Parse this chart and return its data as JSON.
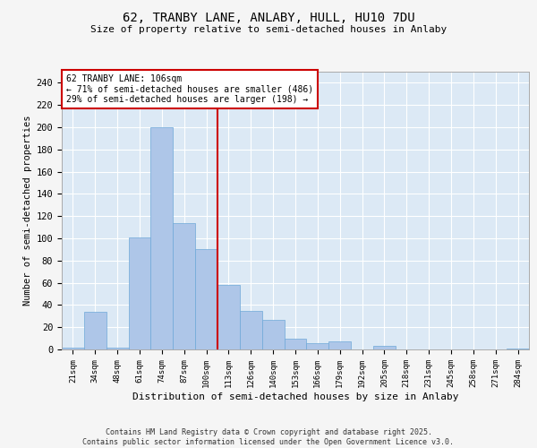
{
  "title_line1": "62, TRANBY LANE, ANLABY, HULL, HU10 7DU",
  "title_line2": "Size of property relative to semi-detached houses in Anlaby",
  "xlabel": "Distribution of semi-detached houses by size in Anlaby",
  "ylabel": "Number of semi-detached properties",
  "categories": [
    "21sqm",
    "34sqm",
    "48sqm",
    "61sqm",
    "74sqm",
    "87sqm",
    "100sqm",
    "113sqm",
    "126sqm",
    "140sqm",
    "153sqm",
    "166sqm",
    "179sqm",
    "192sqm",
    "205sqm",
    "218sqm",
    "231sqm",
    "245sqm",
    "258sqm",
    "271sqm",
    "284sqm"
  ],
  "values": [
    2,
    34,
    2,
    101,
    200,
    114,
    90,
    58,
    35,
    27,
    10,
    6,
    7,
    0,
    3,
    0,
    0,
    0,
    0,
    0,
    1
  ],
  "bar_color": "#aec6e8",
  "bar_edge_color": "#6ea8d8",
  "vline_color": "#cc0000",
  "annotation_title": "62 TRANBY LANE: 106sqm",
  "annotation_line1": "← 71% of semi-detached houses are smaller (486)",
  "annotation_line2": "29% of semi-detached houses are larger (198) →",
  "box_color": "#cc0000",
  "ylim": [
    0,
    250
  ],
  "yticks": [
    0,
    20,
    40,
    60,
    80,
    100,
    120,
    140,
    160,
    180,
    200,
    220,
    240
  ],
  "background_color": "#dce9f5",
  "grid_color": "#ffffff",
  "fig_background": "#f5f5f5",
  "footer_line1": "Contains HM Land Registry data © Crown copyright and database right 2025.",
  "footer_line2": "Contains public sector information licensed under the Open Government Licence v3.0."
}
